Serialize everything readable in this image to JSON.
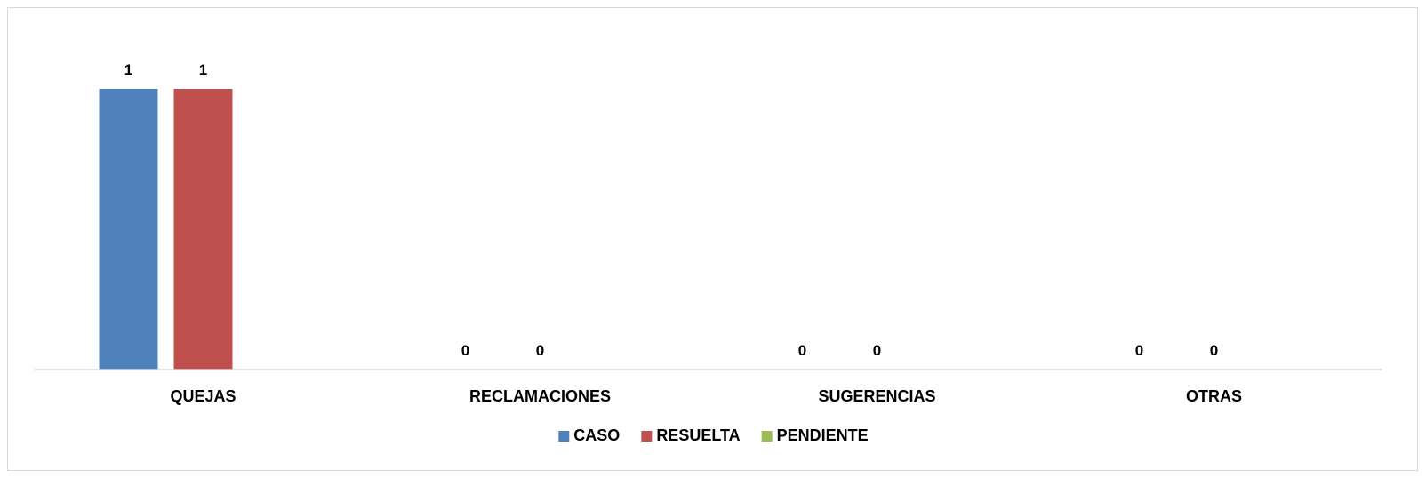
{
  "chart_data": {
    "type": "bar",
    "categories": [
      "QUEJAS",
      "RECLAMACIONES",
      "SUGERENCIAS",
      "OTRAS"
    ],
    "series": [
      {
        "name": "CASO",
        "color": "#4F81BD",
        "values": [
          1,
          0,
          0,
          0
        ]
      },
      {
        "name": "RESUELTA",
        "color": "#C0504D",
        "values": [
          1,
          0,
          0,
          0
        ]
      },
      {
        "name": "PENDIENTE",
        "color": "#9BBB59",
        "values": [
          0,
          0,
          0,
          0
        ]
      }
    ],
    "data_labels_shown_for": [
      "CASO",
      "RESUELTA"
    ],
    "ylim": [
      0,
      1
    ],
    "y_axis_visible": false,
    "grid": false,
    "legend_position": "bottom"
  }
}
